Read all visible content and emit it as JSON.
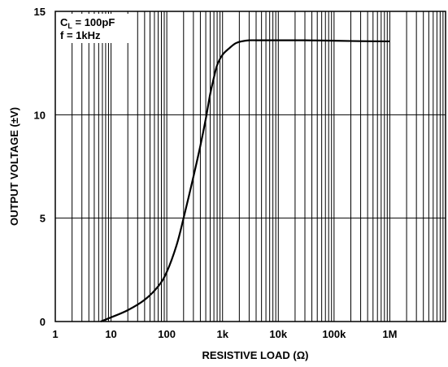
{
  "chart_data": {
    "type": "line",
    "title": "",
    "xlabel": "RESISTIVE LOAD (Ω)",
    "ylabel": "OUTPUT VOLTAGE (±V)",
    "xscale": "log",
    "xlim": [
      1,
      10000000
    ],
    "ylim": [
      0,
      15
    ],
    "grid": true,
    "x_tick_values": [
      1,
      10,
      100,
      1000,
      10000,
      100000,
      1000000
    ],
    "x_tick_labels": [
      "1",
      "10",
      "100",
      "1k",
      "10k",
      "100k",
      "1M"
    ],
    "y_tick_values": [
      0,
      5,
      10,
      15
    ],
    "y_tick_labels": [
      "0",
      "5",
      "10",
      "15"
    ],
    "annotations": {
      "line1_prefix": "C",
      "line1_sub": "L",
      "line1_rest": " = 100pF",
      "line2": "f = 1kHz"
    },
    "series": [
      {
        "x": [
          6.5,
          10,
          20,
          40,
          70,
          100,
          150,
          200,
          300,
          400,
          500,
          600,
          700,
          800,
          1000,
          1300,
          1700,
          2200,
          3000,
          5000,
          10000,
          30000,
          100000,
          300000,
          1000000
        ],
        "values": [
          0,
          0.2,
          0.55,
          1.05,
          1.7,
          2.4,
          3.7,
          5.0,
          7.0,
          8.5,
          9.8,
          11.0,
          11.8,
          12.4,
          12.9,
          13.2,
          13.45,
          13.55,
          13.6,
          13.6,
          13.6,
          13.6,
          13.58,
          13.56,
          13.55
        ]
      }
    ]
  }
}
